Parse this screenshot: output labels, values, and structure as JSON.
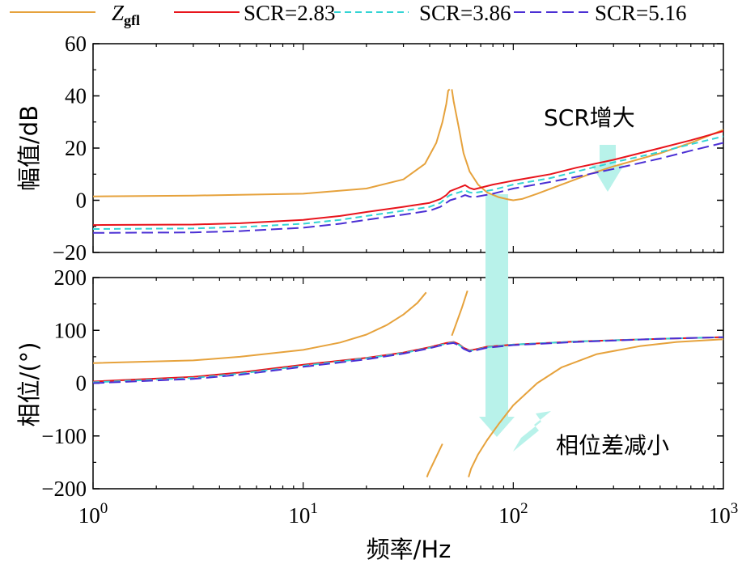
{
  "chart_data": {
    "type": "line",
    "xscale": "log",
    "xlim": [
      1,
      1000
    ],
    "xlabel": "频率/Hz",
    "xtick_values": [
      1,
      10,
      100,
      1000
    ],
    "xtick_labels": [
      {
        "base": "10",
        "exp": "0"
      },
      {
        "base": "10",
        "exp": "1"
      },
      {
        "base": "10",
        "exp": "2"
      },
      {
        "base": "10",
        "exp": "3"
      }
    ],
    "legend": {
      "placement": "top",
      "entries": [
        {
          "key": "zgfl",
          "main": "Z",
          "sub": "gfl"
        },
        {
          "key": "scr283",
          "label": "SCR=2.83"
        },
        {
          "key": "scr386",
          "label": "SCR=3.86"
        },
        {
          "key": "scr516",
          "label": "SCR=5.16"
        }
      ]
    },
    "colors": {
      "zgfl": "#E6A23C",
      "scr283": "#E8141C",
      "scr386": "#33D4D4",
      "scr516": "#4B2FD4",
      "arrow": "#B8F2EA"
    },
    "annotations": {
      "magnitude": "SCR增大",
      "phase": "相位差减小"
    },
    "panels": [
      {
        "name": "magnitude",
        "ylabel": "幅值/dB",
        "ylim": [
          -20,
          60
        ],
        "yticks": [
          -20,
          0,
          20,
          40,
          60
        ],
        "ytick_labels": [
          "−20",
          "0",
          "20",
          "40",
          "60"
        ],
        "series": [
          {
            "key": "zgfl",
            "segments": [
              [
                [
                  1,
                  1.5
                ],
                [
                  3,
                  1.8
                ],
                [
                  10,
                  2.5
                ],
                [
                  20,
                  4.5
                ],
                [
                  30,
                  8
                ],
                [
                  38,
                  14
                ],
                [
                  43,
                  22
                ],
                [
                  46,
                  30
                ],
                [
                  48,
                  37
                ],
                [
                  49,
                  42
                ],
                [
                  49.8,
                  42.5
                ]
              ],
              [
                [
                  51,
                  42.5
                ],
                [
                  52,
                  38
                ],
                [
                  55,
                  28
                ],
                [
                  58,
                  18
                ],
                [
                  62,
                  11
                ],
                [
                  68,
                  6
                ],
                [
                  75,
                  3
                ],
                [
                  85,
                  1.2
                ],
                [
                  95,
                  0.3
                ],
                [
                  100,
                  0
                ],
                [
                  110,
                  0.5
                ],
                [
                  130,
                  2.5
                ],
                [
                  170,
                  6
                ],
                [
                  230,
                  10
                ],
                [
                  300,
                  13
                ],
                [
                  500,
                  18
                ],
                [
                  700,
                  22
                ],
                [
                  1000,
                  27
                ]
              ]
            ]
          },
          {
            "key": "scr283",
            "segments": [
              [
                [
                  1,
                  -9.5
                ],
                [
                  3,
                  -9.3
                ],
                [
                  5,
                  -8.8
                ],
                [
                  10,
                  -7.5
                ],
                [
                  15,
                  -6
                ],
                [
                  20,
                  -4.5
                ],
                [
                  30,
                  -2.5
                ],
                [
                  40,
                  -1
                ],
                [
                  45,
                  0.5
                ],
                [
                  48,
                  2
                ],
                [
                  50,
                  3.5
                ],
                [
                  55,
                  4.8
                ],
                [
                  59,
                  5.8
                ],
                [
                  62,
                  4.7
                ],
                [
                  65,
                  4.2
                ],
                [
                  80,
                  6
                ],
                [
                  100,
                  7.5
                ],
                [
                  150,
                  10
                ],
                [
                  200,
                  12.5
                ],
                [
                  300,
                  15.5
                ],
                [
                  500,
                  20
                ],
                [
                  700,
                  23
                ],
                [
                  1000,
                  26.5
                ]
              ]
            ]
          },
          {
            "key": "scr386",
            "segments": [
              [
                [
                  1,
                  -11
                ],
                [
                  3,
                  -10.8
                ],
                [
                  5,
                  -10.3
                ],
                [
                  10,
                  -9
                ],
                [
                  15,
                  -7.5
                ],
                [
                  20,
                  -6
                ],
                [
                  30,
                  -4
                ],
                [
                  40,
                  -2.5
                ],
                [
                  45,
                  -1
                ],
                [
                  48,
                  1
                ],
                [
                  50,
                  2
                ],
                [
                  55,
                  3
                ],
                [
                  59,
                  3.8
                ],
                [
                  62,
                  3
                ],
                [
                  65,
                  2.8
                ],
                [
                  80,
                  4
                ],
                [
                  100,
                  6
                ],
                [
                  150,
                  8.5
                ],
                [
                  200,
                  11
                ],
                [
                  300,
                  14.5
                ],
                [
                  500,
                  18.5
                ],
                [
                  700,
                  21.5
                ],
                [
                  1000,
                  24.5
                ]
              ]
            ]
          },
          {
            "key": "scr516",
            "segments": [
              [
                [
                  1,
                  -12.5
                ],
                [
                  3,
                  -12.3
                ],
                [
                  5,
                  -11.8
                ],
                [
                  10,
                  -10.5
                ],
                [
                  15,
                  -9
                ],
                [
                  20,
                  -7.5
                ],
                [
                  30,
                  -5.5
                ],
                [
                  40,
                  -4
                ],
                [
                  45,
                  -2.5
                ],
                [
                  48,
                  -1
                ],
                [
                  50,
                  0
                ],
                [
                  55,
                  1
                ],
                [
                  59,
                  2
                ],
                [
                  62,
                  1.4
                ],
                [
                  65,
                  1.2
                ],
                [
                  80,
                  2.5
                ],
                [
                  100,
                  4.5
                ],
                [
                  150,
                  7
                ],
                [
                  200,
                  9
                ],
                [
                  300,
                  12
                ],
                [
                  500,
                  16
                ],
                [
                  700,
                  19
                ],
                [
                  1000,
                  22
                ]
              ]
            ]
          }
        ]
      },
      {
        "name": "phase",
        "ylabel": "相位/(°)",
        "ylim": [
          -200,
          200
        ],
        "yticks": [
          -200,
          -100,
          0,
          100,
          200
        ],
        "ytick_labels": [
          "−200",
          "−100",
          "0",
          "100",
          "200"
        ],
        "series": [
          {
            "key": "zgfl",
            "segments": [
              [
                [
                  1,
                  38
                ],
                [
                  3,
                  43
                ],
                [
                  5,
                  50
                ],
                [
                  10,
                  63
                ],
                [
                  15,
                  77
                ],
                [
                  20,
                  92
                ],
                [
                  25,
                  110
                ],
                [
                  30,
                  130
                ],
                [
                  35,
                  152
                ],
                [
                  38.5,
                  172
                ]
              ],
              [
                [
                  38.8,
                  -178
                ],
                [
                  39.5,
                  -170
                ],
                [
                  42,
                  -148
                ],
                [
                  44.5,
                  -127
                ],
                [
                  46,
                  -115
                ]
              ],
              [
                [
                  51,
                  90
                ],
                [
                  53,
                  108
                ],
                [
                  57,
                  143
                ],
                [
                  60.5,
                  175
                ]
              ],
              [
                [
                  61.3,
                  -178
                ],
                [
                  63,
                  -162
                ],
                [
                  68,
                  -135
                ],
                [
                  75,
                  -108
                ],
                [
                  85,
                  -78
                ],
                [
                  100,
                  -42
                ],
                [
                  130,
                  0
                ],
                [
                  170,
                  30
                ],
                [
                  250,
                  55
                ],
                [
                  400,
                  70
                ],
                [
                  600,
                  78
                ],
                [
                  1000,
                  83
                ]
              ]
            ]
          },
          {
            "key": "scr283",
            "segments": [
              [
                [
                  1,
                  3
                ],
                [
                  3,
                  12
                ],
                [
                  5,
                  20
                ],
                [
                  10,
                  35
                ],
                [
                  20,
                  48
                ],
                [
                  30,
                  58
                ],
                [
                  40,
                  68
                ],
                [
                  48,
                  76
                ],
                [
                  52,
                  78
                ],
                [
                  55,
                  74
                ],
                [
                  58,
                  67
                ],
                [
                  62,
                  62
                ],
                [
                  66,
                  64
                ],
                [
                  75,
                  69
                ],
                [
                  100,
                  73
                ],
                [
                  200,
                  79
                ],
                [
                  500,
                  84
                ],
                [
                  1000,
                  87
                ]
              ]
            ]
          },
          {
            "key": "scr386",
            "segments": [
              [
                [
                  1,
                  1.5
                ],
                [
                  3,
                  10
                ],
                [
                  5,
                  18
                ],
                [
                  10,
                  33
                ],
                [
                  20,
                  47
                ],
                [
                  30,
                  57
                ],
                [
                  40,
                  67
                ],
                [
                  48,
                  75
                ],
                [
                  52,
                  77
                ],
                [
                  55,
                  73
                ],
                [
                  58,
                  66
                ],
                [
                  62,
                  61
                ],
                [
                  66,
                  63
                ],
                [
                  75,
                  68
                ],
                [
                  100,
                  73
                ],
                [
                  200,
                  79
                ],
                [
                  500,
                  84
                ],
                [
                  1000,
                  87
                ]
              ]
            ]
          },
          {
            "key": "scr516",
            "segments": [
              [
                [
                  1,
                  0
                ],
                [
                  3,
                  8
                ],
                [
                  5,
                  16
                ],
                [
                  10,
                  31
                ],
                [
                  20,
                  45
                ],
                [
                  30,
                  56
                ],
                [
                  40,
                  66
                ],
                [
                  48,
                  74
                ],
                [
                  52,
                  76
                ],
                [
                  55,
                  72
                ],
                [
                  58,
                  65
                ],
                [
                  62,
                  60
                ],
                [
                  66,
                  62
                ],
                [
                  75,
                  67
                ],
                [
                  100,
                  72
                ],
                [
                  200,
                  78
                ],
                [
                  500,
                  84
                ],
                [
                  1000,
                  87
                ]
              ]
            ]
          }
        ]
      }
    ]
  }
}
